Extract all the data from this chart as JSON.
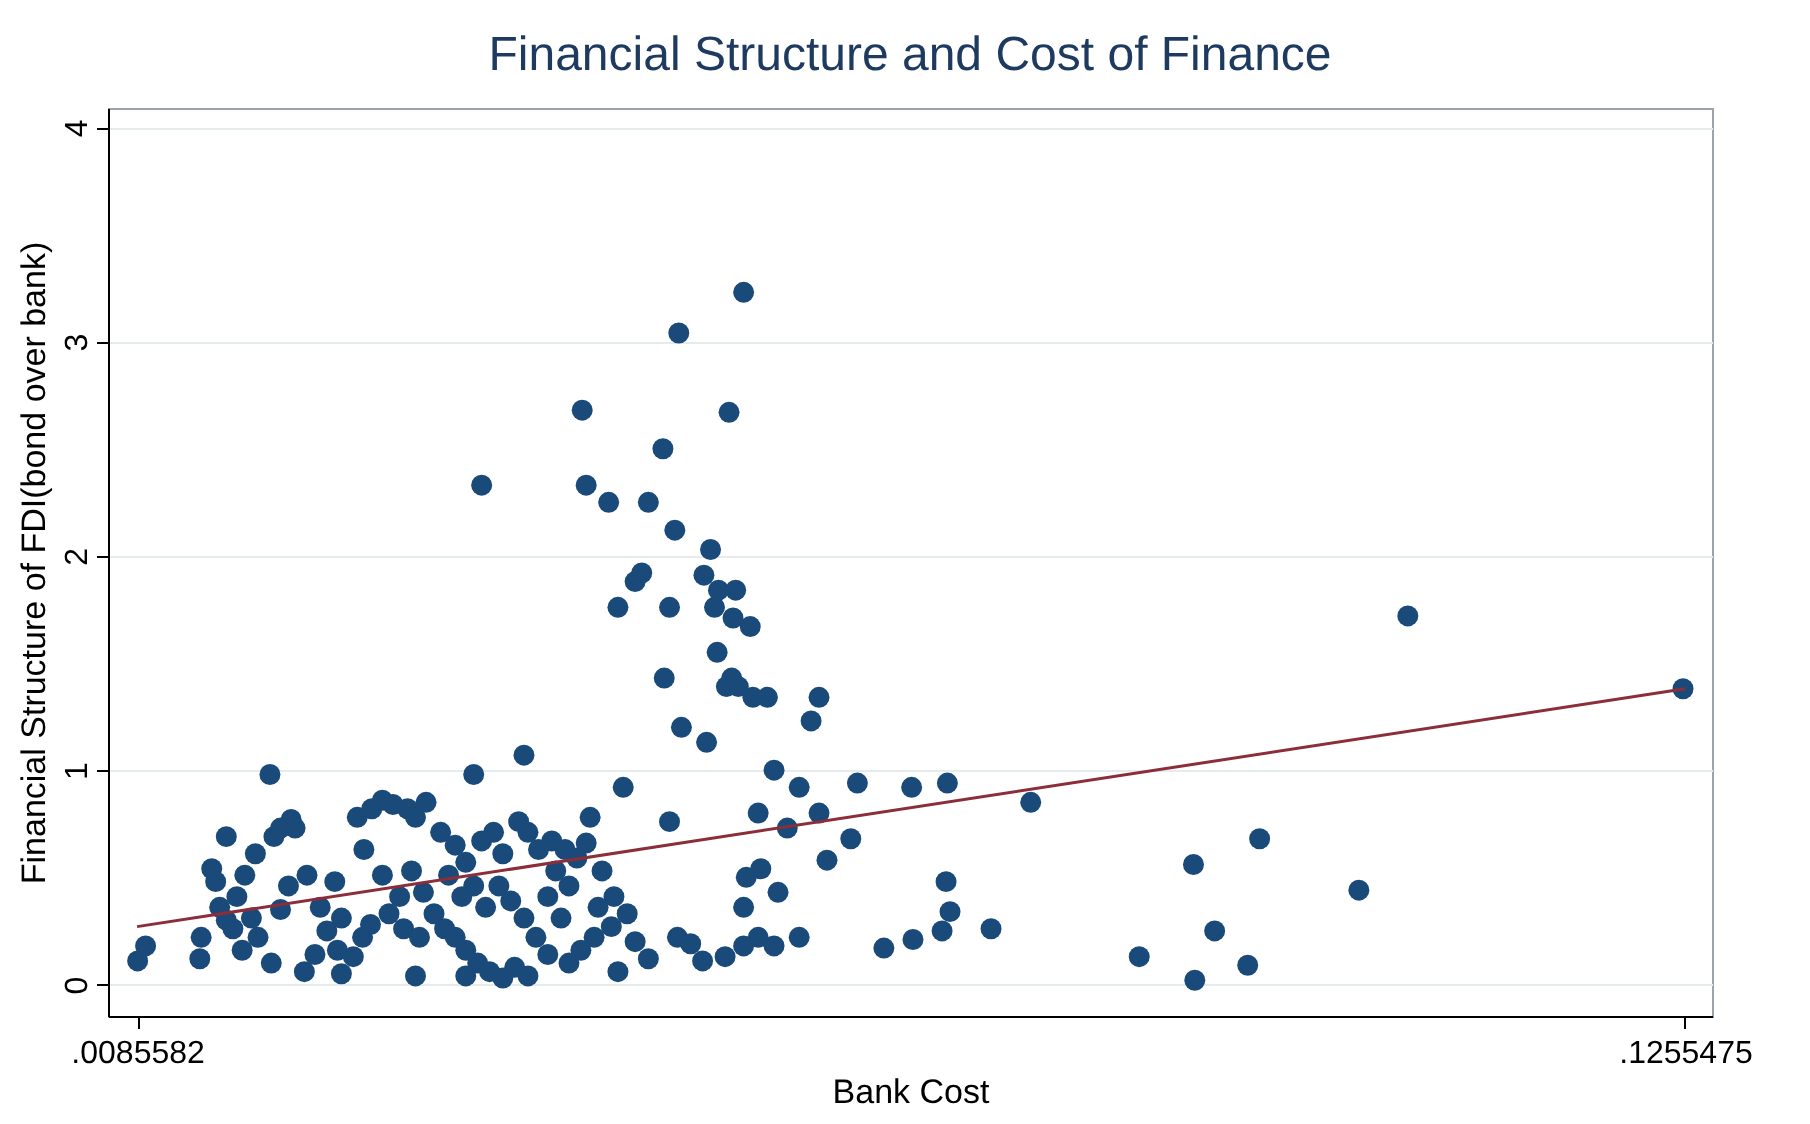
{
  "chart_data": {
    "type": "scatter",
    "title": "Financial Structure and Cost of Finance",
    "xlabel": "Bank Cost",
    "ylabel": "Financial Structure of FDI(bond over bank)",
    "xlim": [
      0.00636,
      0.12759
    ],
    "xticks": [
      {
        "value": 0.0085582,
        "label": ".0085582"
      },
      {
        "value": 0.1255475,
        "label": ".1255475"
      }
    ],
    "ylim": [
      -0.147,
      4.09
    ],
    "yticks": [
      0,
      1,
      2,
      3,
      4
    ],
    "grid": "y",
    "series": [
      {
        "marker": "circle",
        "color": "#1a4a7a",
        "x": [
          0.0544,
          0.0495,
          0.0422,
          0.0533,
          0.0346,
          0.0425,
          0.0442,
          0.0483,
          0.0472,
          0.0492,
          0.0519,
          0.0467,
          0.0462,
          0.0514,
          0.0525,
          0.0538,
          0.0449,
          0.0488,
          0.0522,
          0.0536,
          0.0549,
          0.0524,
          0.0484,
          0.0535,
          0.054,
          0.0531,
          0.0551,
          0.0562,
          0.0601,
          0.0595,
          0.0497,
          0.0516,
          0.0567,
          0.0378,
          0.034,
          0.0186,
          0.0586,
          0.063,
          0.0671,
          0.0698,
          0.0761,
          0.0453,
          0.0488,
          0.0555,
          0.0601,
          0.0577,
          0.0625,
          0.0607,
          0.0557,
          0.0546,
          0.0697,
          0.07,
          0.057,
          0.0544,
          0.0694,
          0.0731,
          0.0672,
          0.065,
          0.0586,
          0.0555,
          0.0567,
          0.0544,
          0.053,
          0.0513,
          0.0494,
          0.0504,
          0.1046,
          0.1254,
          0.0934,
          0.0884,
          0.1009,
          0.09,
          0.0843,
          0.0925,
          0.0885,
          0.0086,
          0.0092,
          0.0133,
          0.0134,
          0.0142,
          0.0145,
          0.0148,
          0.0153,
          0.0161,
          0.0158,
          0.0165,
          0.0167,
          0.0172,
          0.0175,
          0.0153,
          0.0177,
          0.0187,
          0.0189,
          0.0194,
          0.0202,
          0.0205,
          0.02,
          0.0194,
          0.0214,
          0.0224,
          0.0235,
          0.024,
          0.0212,
          0.022,
          0.0229,
          0.024,
          0.0249,
          0.0256,
          0.0262,
          0.0263,
          0.0271,
          0.0279,
          0.029,
          0.0296,
          0.0304,
          0.0252,
          0.0257,
          0.0271,
          0.0284,
          0.0293,
          0.0302,
          0.0276,
          0.0287,
          0.0299,
          0.031,
          0.0318,
          0.0326,
          0.0334,
          0.0343,
          0.0352,
          0.0362,
          0.0371,
          0.0315,
          0.0326,
          0.0334,
          0.0346,
          0.0355,
          0.0362,
          0.0374,
          0.0381,
          0.0389,
          0.0399,
          0.0409,
          0.0418,
          0.0428,
          0.0425,
          0.0437,
          0.0446,
          0.0456,
          0.0444,
          0.0431,
          0.0421,
          0.0412,
          0.0396,
          0.0387,
          0.0378,
          0.0368,
          0.0359,
          0.0349,
          0.034,
          0.0331,
          0.0321,
          0.0396,
          0.0406,
          0.0412,
          0.0462,
          0.0472,
          0.0449,
          0.0296,
          0.0334,
          0.0381,
          0.0402,
          0.0434,
          0.0237
        ],
        "values": [
          3.23,
          3.04,
          2.68,
          2.67,
          2.33,
          2.33,
          2.25,
          2.5,
          2.25,
          2.12,
          2.03,
          1.92,
          1.88,
          1.91,
          1.84,
          1.84,
          1.76,
          1.76,
          1.76,
          1.71,
          1.67,
          1.55,
          1.43,
          1.43,
          1.39,
          1.39,
          1.34,
          1.34,
          1.34,
          1.23,
          1.2,
          1.13,
          1.0,
          1.07,
          0.98,
          0.98,
          0.92,
          0.94,
          0.92,
          0.94,
          0.85,
          0.92,
          0.76,
          0.8,
          0.8,
          0.73,
          0.68,
          0.58,
          0.54,
          0.5,
          0.48,
          0.34,
          0.43,
          0.36,
          0.25,
          0.26,
          0.21,
          0.17,
          0.22,
          0.22,
          0.18,
          0.18,
          0.13,
          0.11,
          0.22,
          0.19,
          1.72,
          1.38,
          0.68,
          0.56,
          0.44,
          0.25,
          0.13,
          0.09,
          0.02,
          0.11,
          0.18,
          0.12,
          0.22,
          0.54,
          0.48,
          0.36,
          0.3,
          0.41,
          0.26,
          0.16,
          0.51,
          0.31,
          0.61,
          0.69,
          0.22,
          0.1,
          0.69,
          0.73,
          0.77,
          0.73,
          0.46,
          0.35,
          0.51,
          0.36,
          0.48,
          0.31,
          0.06,
          0.14,
          0.25,
          0.05,
          0.13,
          0.22,
          0.28,
          0.82,
          0.86,
          0.84,
          0.82,
          0.78,
          0.85,
          0.78,
          0.63,
          0.51,
          0.41,
          0.53,
          0.43,
          0.33,
          0.26,
          0.22,
          0.33,
          0.26,
          0.22,
          0.16,
          0.1,
          0.06,
          0.03,
          0.08,
          0.71,
          0.65,
          0.57,
          0.67,
          0.71,
          0.61,
          0.76,
          0.71,
          0.63,
          0.67,
          0.63,
          0.59,
          0.78,
          0.66,
          0.53,
          0.41,
          0.33,
          0.27,
          0.22,
          0.16,
          0.1,
          0.14,
          0.22,
          0.31,
          0.39,
          0.46,
          0.36,
          0.46,
          0.41,
          0.51,
          0.41,
          0.31,
          0.46,
          0.2,
          0.12,
          0.06,
          0.04,
          0.04,
          0.04,
          0.53,
          0.36,
          0.16
        ]
      },
      {
        "type": "line",
        "color": "#8b2e3a",
        "x": [
          0.0085582,
          0.1255475
        ],
        "values": [
          0.27,
          1.38
        ]
      }
    ]
  }
}
